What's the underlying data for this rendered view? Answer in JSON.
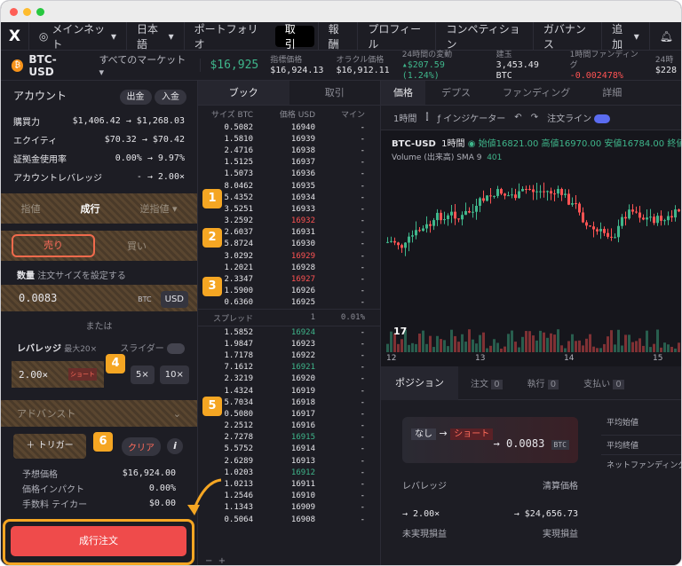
{
  "nav": {
    "network": "メインネット",
    "lang": "日本語",
    "items": [
      "ポートフォリオ",
      "取引",
      "報酬",
      "プロフィール",
      "コンペティション",
      "ガバナンス",
      "追加"
    ]
  },
  "market": {
    "pair": "BTC-USD",
    "all": "すべてのマーケット",
    "price": "$16,925",
    "stats": [
      {
        "l": "指標価格",
        "v": "$16,924.13"
      },
      {
        "l": "オラクル価格",
        "v": "$16,912.11"
      },
      {
        "l": "24時間の変動",
        "v": "▴$207.59 (1.24%)"
      },
      {
        "l": "建玉",
        "v": "3,453.49 BTC"
      },
      {
        "l": "1時間ファンディング",
        "v": "-0.002478%"
      },
      {
        "l": "24時",
        "v": "$228"
      }
    ]
  },
  "account": {
    "title": "アカウント",
    "withdraw": "出金",
    "deposit": "入金",
    "rows": [
      {
        "l": "購買力",
        "v": "$1,406.42 → $1,268.03"
      },
      {
        "l": "エクイティ",
        "v": "$70.32 → $70.42"
      },
      {
        "l": "証拠金使用率",
        "v": "0.00% → 9.97%"
      },
      {
        "l": "アカウントレバレッジ",
        "v": "- → 2.00×"
      }
    ]
  },
  "form": {
    "tabs": [
      "指値",
      "成行",
      "逆指値 ▾"
    ],
    "sell": "売り",
    "buy": "買い",
    "amount_label": "数量",
    "amount_hint": "注文サイズを設定する",
    "amount": "0.0083",
    "btc": "BTC",
    "usd": "USD",
    "or": "または",
    "lev_label": "レバレッジ",
    "lev_max": "最大20×",
    "slider": "スライダー",
    "lev": "2.00×",
    "short": "ショート",
    "x5": "5×",
    "x10": "10×",
    "advanced": "アドバンスト",
    "trigger": "＋ トリガー",
    "clear": "クリア",
    "details": [
      {
        "l": "予想価格",
        "v": "$16,924.00"
      },
      {
        "l": "価格インパクト",
        "v": "0.00%"
      },
      {
        "l": "手数料 テイカー",
        "v": "$0.00"
      }
    ],
    "submit": "成行注文"
  },
  "book": {
    "tabs": [
      "ブック",
      "取引"
    ],
    "h": [
      "サイズ BTC",
      "価格 USD",
      "マイン"
    ],
    "asks": [
      [
        "0.5082",
        "16940"
      ],
      [
        "1.5810",
        "16939"
      ],
      [
        "2.4716",
        "16938"
      ],
      [
        "1.5125",
        "16937"
      ],
      [
        "1.5073",
        "16936"
      ],
      [
        "8.0462",
        "16935"
      ],
      [
        "5.4352",
        "16934"
      ],
      [
        "3.5251",
        "16933"
      ],
      [
        "3.2592",
        "16932"
      ],
      [
        "2.6037",
        "16931"
      ],
      [
        "5.8724",
        "16930"
      ],
      [
        "3.0292",
        "16929"
      ],
      [
        "1.2021",
        "16928"
      ],
      [
        "2.3347",
        "16927"
      ],
      [
        "1.5900",
        "16926"
      ],
      [
        "0.6360",
        "16925"
      ]
    ],
    "spread": [
      "スプレッド",
      "1",
      "0.01%"
    ],
    "bids": [
      [
        "1.5852",
        "16924"
      ],
      [
        "1.9847",
        "16923"
      ],
      [
        "1.7178",
        "16922"
      ],
      [
        "7.1612",
        "16921"
      ],
      [
        "2.3219",
        "16920"
      ],
      [
        "1.4324",
        "16919"
      ],
      [
        "5.7034",
        "16918"
      ],
      [
        "0.5080",
        "16917"
      ],
      [
        "2.2512",
        "16916"
      ],
      [
        "2.7278",
        "16915"
      ],
      [
        "5.5752",
        "16914"
      ],
      [
        "2.6289",
        "16913"
      ],
      [
        "1.0203",
        "16912"
      ],
      [
        "1.0213",
        "16911"
      ],
      [
        "1.2546",
        "16910"
      ],
      [
        "1.1343",
        "16909"
      ],
      [
        "0.5064",
        "16908"
      ]
    ]
  },
  "chartp": {
    "tabs": [
      "価格",
      "デプス",
      "ファンディング",
      "詳細"
    ],
    "tf": "1時間",
    "ind": "インジケーター",
    "ol": "注文ライン",
    "sym": "BTC-USD",
    "itv": "1時間",
    "ohlc": "始値16821.00 高値16970.00 安値16784.00 終値1691",
    "vol": "Volume (出来高) SMA 9",
    "volv": "401",
    "xt": [
      "12",
      "13",
      "14",
      "15"
    ]
  },
  "positions": {
    "tabs": [
      "ポジション",
      "注文",
      "執行",
      "支払い"
    ],
    "counts": [
      "0",
      "0",
      "0"
    ],
    "none": "なし",
    "short": "ショート",
    "size": "→ 0.0083",
    "btc": "BTC",
    "lev": "レバレッジ",
    "liq": "清算価格",
    "levv": "→ 2.00×",
    "liqv": "→ $24,656.73",
    "upnl": "未実現損益",
    "rpnl": "実現損益",
    "side": [
      "平均始値",
      "平均終値",
      "ネットファンディング"
    ]
  },
  "badges": [
    "1",
    "2",
    "3",
    "4",
    "5",
    "6"
  ]
}
